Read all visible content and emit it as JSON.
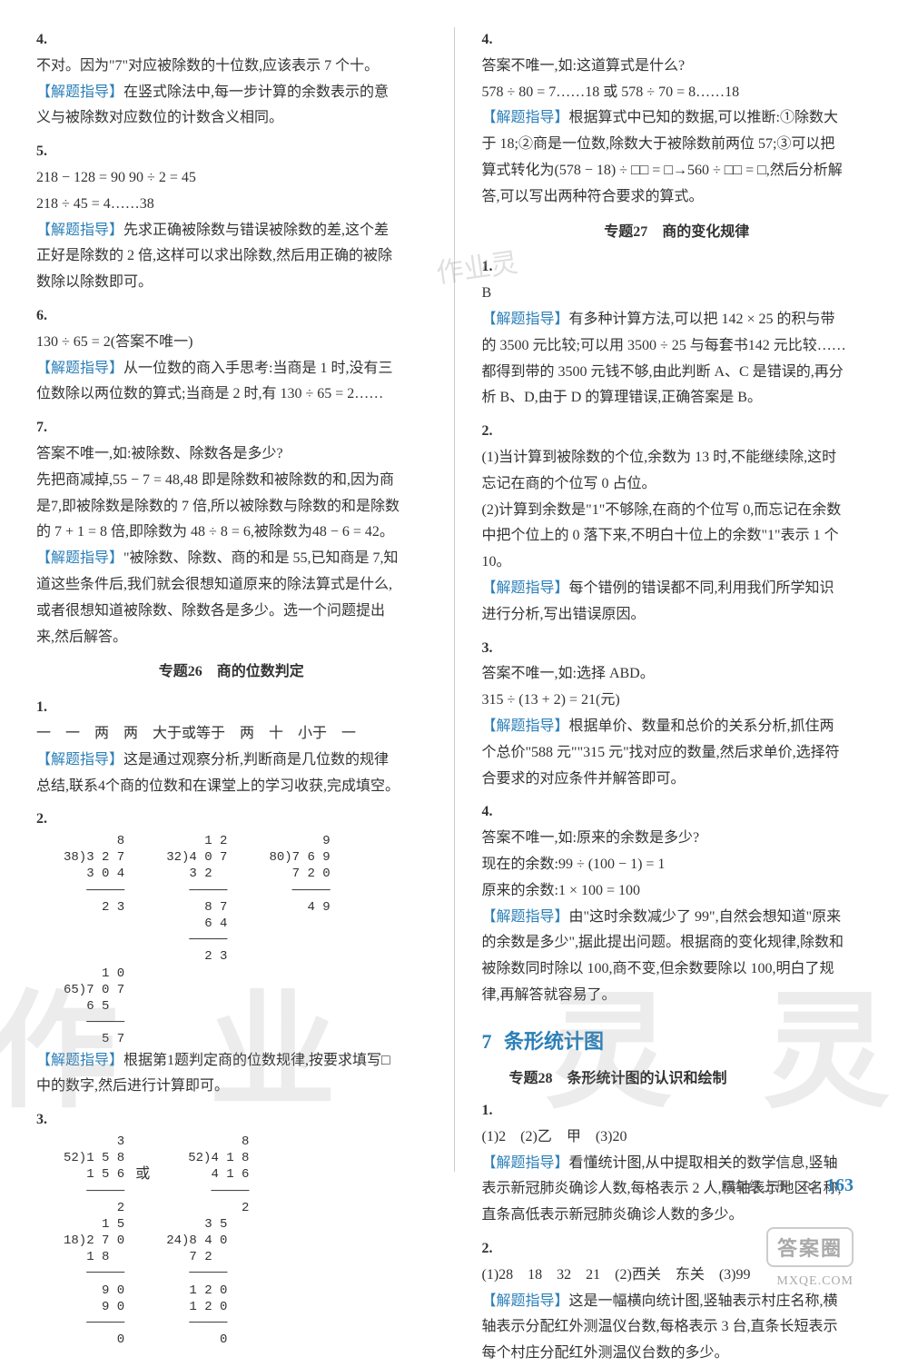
{
  "left": {
    "q4": {
      "text": "不对。因为\"7\"对应被除数的十位数,应该表示 7 个十。",
      "hint": "在竖式除法中,每一步计算的余数表示的意义与被除数对应数位的计数含义相同。"
    },
    "q5": {
      "line1": "218 − 128 = 90   90 ÷ 2 = 45",
      "line2": "218 ÷ 45 = 4……38",
      "hint": "先求正确被除数与错误被除数的差,这个差正好是除数的 2 倍,这样可以求出除数,然后用正确的被除数除以除数即可。"
    },
    "q6": {
      "line1": "130 ÷ 65 = 2(答案不唯一)",
      "hint": "从一位数的商入手思考:当商是 1 时,没有三位数除以两位数的算式;当商是 2 时,有 130 ÷ 65 = 2……"
    },
    "q7": {
      "line1": "答案不唯一,如:被除数、除数各是多少?",
      "line2": "先把商减掉,55 − 7 = 48,48 即是除数和被除数的和,因为商是7,即被除数是除数的 7 倍,所以被除数与除数的和是除数的 7 + 1 = 8 倍,即除数为 48 ÷ 8 = 6,被除数为48 − 6 = 42。",
      "hint": "\"被除数、除数、商的和是 55,已知商是 7,知道这些条件后,我们就会很想知道原来的除法算式是什么,或者很想知道被除数、除数各是多少。选一个问题提出来,然后解答。"
    },
    "topic26": {
      "title": "专题26　商的位数判定",
      "q1": {
        "text": "一　一　两　两　大于或等于　两　十　小于　一",
        "hint": "这是通过观察分析,判断商是几位数的规律总结,联系4个商的位数和在课堂上的学习收获,完成填空。"
      },
      "q2": {
        "div1": "       8\n38)3 2 7\n   3 0 4\n   ─────\n     2 3",
        "div2": "     1 2\n32)4 0 7\n   3 2\n   ─────\n     8 7\n     6 4\n   ─────\n     2 3",
        "div3": "       9\n80)7 6 9\n   7 2 0\n   ─────\n     4 9",
        "div4": "     1 0\n65)7 0 7\n   6 5\n   ─────\n     5 7",
        "hint": "根据第1题判定商的位数规律,按要求填写□中的数字,然后进行计算即可。"
      },
      "q3": {
        "div1": "       3\n52)1 5 8\n   1 5 6\n   ─────\n       2",
        "div2": "       8\n52)4 1 8\n   4 1 6\n   ─────\n       2",
        "or": "或",
        "div3": "     1 5\n18)2 7 0\n   1 8\n   ─────\n     9 0\n     9 0\n   ─────\n       0",
        "div4": "     3 5\n24)8 4 0\n   7 2\n   ─────\n   1 2 0\n   1 2 0\n   ─────\n       0"
      }
    }
  },
  "right": {
    "q4top": {
      "line1": "答案不唯一,如:这道算式是什么?",
      "line2": "578 ÷ 80 = 7……18 或 578 ÷ 70 = 8……18",
      "hint": "根据算式中已知的数据,可以推断:①除数大于 18;②商是一位数,除数大于被除数前两位 57;③可以把算式转化为(578 − 18) ÷ □□ = □→560 ÷ □□ = □,然后分析解答,可以写出两种符合要求的算式。"
    },
    "topic27": {
      "title": "专题27　商的变化规律",
      "q1": {
        "ans": "B",
        "hint": "有多种计算方法,可以把 142 × 25 的积与带的 3500 元比较;可以用 3500 ÷ 25 与每套书142 元比较……都得到带的 3500 元钱不够,由此判断 A、C 是错误的,再分析 B、D,由于 D 的算理错误,正确答案是 B。"
      },
      "q2": {
        "a": "(1)当计算到被除数的个位,余数为 13 时,不能继续除,这时忘记在商的个位写 0 占位。",
        "b": "(2)计算到余数是\"1\"不够除,在商的个位写 0,而忘记在余数中把个位上的 0 落下来,不明白十位上的余数\"1\"表示 1 个 10。",
        "hint": "每个错例的错误都不同,利用我们所学知识进行分析,写出错误原因。"
      },
      "q3": {
        "line1": "答案不唯一,如:选择 ABD。",
        "line2": "315 ÷ (13 + 2) = 21(元)",
        "hint": "根据单价、数量和总价的关系分析,抓住两个总价\"588 元\"\"315 元\"找对应的数量,然后求单价,选择符合要求的对应条件并解答即可。"
      },
      "q4": {
        "line1": "答案不唯一,如:原来的余数是多少?",
        "line2": "现在的余数:99 ÷ (100 − 1) = 1",
        "line3": "原来的余数:1 × 100 = 100",
        "hint": "由\"这时余数减少了 99\",自然会想知道\"原来的余数是多少\",据此提出问题。根据商的变化规律,除数和被除数同时除以 100,商不变,但余数要除以 100,明白了规律,再解答就容易了。"
      }
    },
    "section7": {
      "num": "7",
      "title": "条形统计图",
      "topic28": {
        "title": "专题28　条形统计图的认识和绘制",
        "q1": {
          "text": "(1)2　(2)乙　甲　(3)20",
          "hint": "看懂统计图,从中提取相关的数学信息,竖轴表示新冠肺炎确诊人数,每格表示 2 人,横轴表示地区名称,直条高低表示新冠肺炎确诊人数的多少。"
        },
        "q2": {
          "text": "(1)28　18　32　21　(2)西关　东关　(3)99",
          "hint": "这是一幅横向统计图,竖轴表示村庄名称,横轴表示分配红外测温仪台数,每格表示 3 台,直条长短表示每个村庄分配红外测温仪台数的多少。"
        }
      }
    }
  },
  "footer": {
    "grade": "四年级上册　RJ",
    "page": "163"
  },
  "watermarks": {
    "a": "作",
    "b": "业",
    "c": "灵",
    "d": "灵",
    "stamp": "答案圈",
    "url": "MXQE.COM",
    "small": "作业灵"
  },
  "hint_label": "【解题指导】"
}
